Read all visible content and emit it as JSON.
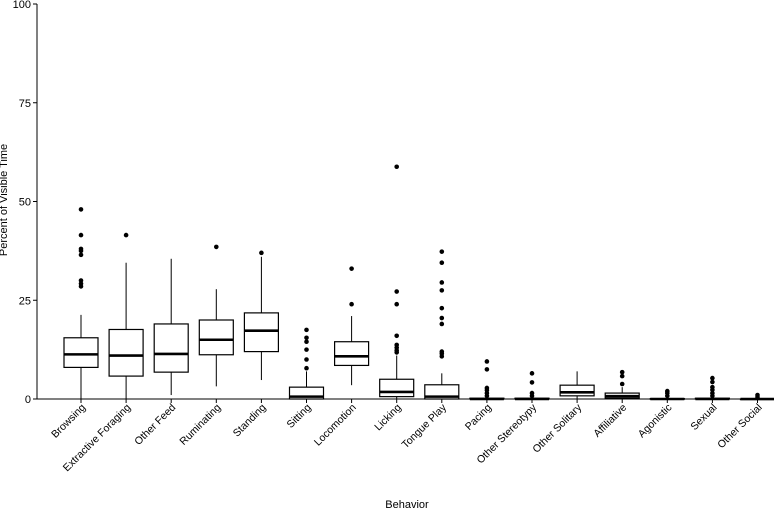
{
  "chart_data": {
    "type": "boxplot",
    "xlabel": "Behavior",
    "ylabel": "Percent of Visible Time",
    "ylim": [
      0,
      100
    ],
    "yticks": [
      0,
      25,
      50,
      75,
      100
    ],
    "grid": false,
    "box_color": "#000000",
    "fill_color": "#ffffff",
    "categories": [
      "Browsing",
      "Extractive Foraging",
      "Other Feed",
      "Ruminating",
      "Standing",
      "Sitting",
      "Locomotion",
      "Licking",
      "Tongue Play",
      "Pacing",
      "Other Stereotypy",
      "Other Solitary",
      "Affiliative",
      "Agonistic",
      "Sexual",
      "Other Social"
    ],
    "boxes": [
      {
        "min": 0,
        "q1": 8,
        "median": 11.3,
        "q3": 15.5,
        "max": 21.3,
        "outliers": [
          28.5,
          29.2,
          30,
          36.5,
          37.5,
          38,
          41.5,
          48
        ]
      },
      {
        "min": 0,
        "q1": 5.8,
        "median": 11,
        "q3": 17.6,
        "max": 34.5,
        "outliers": [
          41.5
        ]
      },
      {
        "min": 1,
        "q1": 6.8,
        "median": 11.4,
        "q3": 19,
        "max": 35.5,
        "outliers": []
      },
      {
        "min": 3.2,
        "q1": 11.2,
        "median": 15,
        "q3": 20,
        "max": 27.8,
        "outliers": [
          38.5
        ]
      },
      {
        "min": 4.8,
        "q1": 12,
        "median": 17.3,
        "q3": 21.8,
        "max": 36,
        "outliers": [
          37
        ]
      },
      {
        "min": 0,
        "q1": 0,
        "median": 0.6,
        "q3": 3,
        "max": 7,
        "outliers": [
          7.8,
          10,
          12.5,
          14.5,
          15.5,
          17.5
        ]
      },
      {
        "min": 3.5,
        "q1": 8.5,
        "median": 10.8,
        "q3": 14.5,
        "max": 21,
        "outliers": [
          24,
          33
        ]
      },
      {
        "min": 0,
        "q1": 0.6,
        "median": 1.8,
        "q3": 5,
        "max": 11,
        "outliers": [
          11.8,
          12.3,
          13,
          13.7,
          16,
          24,
          27.2,
          58.8
        ]
      },
      {
        "min": 0,
        "q1": 0,
        "median": 0.6,
        "q3": 3.6,
        "max": 6.5,
        "outliers": [
          10.8,
          11.5,
          12,
          19,
          20.5,
          23,
          27.5,
          29.5,
          34.5,
          37.3
        ]
      },
      {
        "min": 0,
        "q1": 0,
        "median": 0,
        "q3": 0.2,
        "max": 0.5,
        "outliers": [
          0.8,
          1.5,
          2.2,
          2.8,
          7.5,
          9.5
        ]
      },
      {
        "min": 0,
        "q1": 0,
        "median": 0,
        "q3": 0.2,
        "max": 0.4,
        "outliers": [
          0.8,
          1.5,
          4.2,
          6.5
        ]
      },
      {
        "min": 0,
        "q1": 0.8,
        "median": 1.7,
        "q3": 3.5,
        "max": 7,
        "outliers": []
      },
      {
        "min": 0,
        "q1": 0.2,
        "median": 0.7,
        "q3": 1.5,
        "max": 3,
        "outliers": [
          3.8,
          5.8,
          6.8
        ]
      },
      {
        "min": 0,
        "q1": 0,
        "median": 0,
        "q3": 0.1,
        "max": 0.3,
        "outliers": [
          0.8,
          1.5,
          2
        ]
      },
      {
        "min": 0,
        "q1": 0,
        "median": 0,
        "q3": 0.2,
        "max": 0.4,
        "outliers": [
          0.8,
          1.5,
          2.3,
          3,
          4.3,
          5.3
        ]
      },
      {
        "min": 0,
        "q1": 0,
        "median": 0,
        "q3": 0,
        "max": 0,
        "outliers": [
          0.5,
          1
        ]
      }
    ]
  }
}
